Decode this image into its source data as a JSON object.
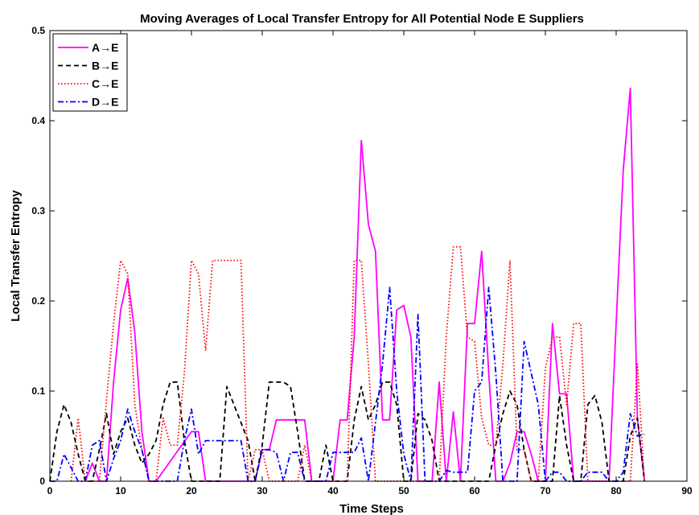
{
  "chart_data": {
    "type": "line",
    "title": "Moving Averages of Local Transfer Entropy for All Potential Node E Suppliers",
    "xlabel": "Time Steps",
    "ylabel": "Local Transfer Entropy",
    "xlim": [
      0,
      90
    ],
    "ylim": [
      0,
      0.5
    ],
    "xticks": [
      "0",
      "10",
      "20",
      "30",
      "40",
      "50",
      "60",
      "70",
      "80",
      "90"
    ],
    "yticks": [
      "0",
      "0.1",
      "0.2",
      "0.3",
      "0.4",
      "0.5"
    ],
    "grid": false,
    "legend_position": "top-left",
    "series": [
      {
        "name": "A→E",
        "color": "#ff00ff",
        "dash": "solid",
        "x": [
          5,
          6,
          7,
          8,
          9,
          10,
          11,
          12,
          13,
          14,
          15,
          20,
          21,
          22,
          23,
          29,
          30,
          31,
          32,
          33,
          34,
          35,
          36,
          37,
          40,
          41,
          42,
          43,
          44,
          45,
          46,
          47,
          48,
          49,
          50,
          51,
          52,
          53,
          54,
          55,
          56,
          57,
          58,
          59,
          60,
          61,
          62,
          63,
          64,
          65,
          66,
          67,
          68,
          69,
          70,
          71,
          72,
          73,
          74,
          75,
          76,
          77,
          78,
          79,
          80,
          81,
          82,
          83,
          84
        ],
        "values": [
          0,
          0.02,
          0,
          0,
          0.11,
          0.19,
          0.225,
          0.165,
          0.055,
          0,
          0,
          0.055,
          0.055,
          0,
          0,
          0,
          0.035,
          0.035,
          0.068,
          0.068,
          0.068,
          0.068,
          0.068,
          0,
          0,
          0.068,
          0.068,
          0.16,
          0.378,
          0.285,
          0.255,
          0.068,
          0.068,
          0.19,
          0.195,
          0.16,
          0,
          0,
          0,
          0.11,
          0,
          0.077,
          0,
          0.175,
          0.175,
          0.255,
          0.12,
          0,
          0,
          0.02,
          0.055,
          0.055,
          0.03,
          0,
          0,
          0.175,
          0.097,
          0.097,
          0,
          0,
          0,
          0,
          0,
          0,
          0.175,
          0.345,
          0.436,
          0.07,
          0
        ]
      },
      {
        "name": "B→E",
        "color": "#000000",
        "dash": "dashed",
        "x": [
          0,
          1,
          2,
          3,
          4,
          5,
          6,
          7,
          8,
          9,
          10,
          11,
          12,
          13,
          14,
          15,
          16,
          17,
          18,
          19,
          20,
          21,
          22,
          23,
          24,
          25,
          26,
          27,
          28,
          29,
          30,
          31,
          32,
          33,
          34,
          35,
          36,
          37,
          38,
          39,
          40,
          41,
          42,
          43,
          44,
          45,
          46,
          47,
          48,
          49,
          50,
          51,
          52,
          53,
          54,
          55,
          56,
          57,
          58,
          59,
          60,
          61,
          62,
          63,
          64,
          65,
          66,
          67,
          68,
          69,
          70,
          71,
          72,
          73,
          74,
          75,
          76,
          77,
          78,
          79,
          80,
          81,
          82,
          83,
          84
        ],
        "values": [
          0,
          0.055,
          0.085,
          0.065,
          0.03,
          0,
          0,
          0.035,
          0.075,
          0.03,
          0.055,
          0.07,
          0.04,
          0.02,
          0.03,
          0.045,
          0.085,
          0.11,
          0.11,
          0.045,
          0,
          0,
          0,
          0,
          0,
          0.105,
          0.085,
          0.065,
          0.045,
          0,
          0.04,
          0.11,
          0.11,
          0.11,
          0.105,
          0.055,
          0,
          0,
          0,
          0.04,
          0,
          0,
          0,
          0.068,
          0.105,
          0.068,
          0.085,
          0.11,
          0.11,
          0.085,
          0,
          0,
          0.075,
          0.068,
          0.045,
          0,
          0,
          0,
          0,
          0,
          0,
          0,
          0,
          0.04,
          0.075,
          0.1,
          0.085,
          0.035,
          0,
          0,
          0,
          0,
          0.095,
          0.04,
          0,
          0,
          0.085,
          0.095,
          0.065,
          0,
          0,
          0,
          0.05,
          0.07,
          0
        ]
      },
      {
        "name": "C→E",
        "color": "#ff0000",
        "dash": "dotted",
        "x": [
          3,
          4,
          5,
          6,
          7,
          8,
          9,
          10,
          11,
          12,
          13,
          14,
          15,
          16,
          17,
          18,
          19,
          20,
          21,
          22,
          23,
          24,
          25,
          26,
          27,
          28,
          29,
          30,
          31,
          32,
          33,
          34,
          35,
          36,
          37,
          38,
          39,
          40,
          41,
          42,
          43,
          44,
          45,
          46,
          47,
          48,
          49,
          50,
          51,
          52,
          53,
          54,
          55,
          56,
          57,
          58,
          59,
          60,
          61,
          62,
          63,
          64,
          65,
          66,
          67,
          68,
          69,
          70,
          71,
          72,
          73,
          74,
          75,
          76,
          77,
          78,
          79,
          80,
          81,
          82,
          83,
          84
        ],
        "values": [
          0,
          0.07,
          0,
          0,
          0,
          0.09,
          0.175,
          0.245,
          0.23,
          0.085,
          0.035,
          0,
          0,
          0.07,
          0.04,
          0.04,
          0.12,
          0.245,
          0.23,
          0.145,
          0.245,
          0.245,
          0.245,
          0.245,
          0.245,
          0,
          0.035,
          0.035,
          0,
          0,
          0,
          0,
          0,
          0.04,
          0,
          0,
          0,
          0,
          0,
          0,
          0.245,
          0.245,
          0.13,
          0,
          0,
          0,
          0,
          0,
          0,
          0,
          0,
          0,
          0,
          0.16,
          0.26,
          0.26,
          0.16,
          0.155,
          0.07,
          0.04,
          0.04,
          0.13,
          0.245,
          0.035,
          0.035,
          0,
          0,
          0.125,
          0.16,
          0.16,
          0.085,
          0.175,
          0.175,
          0,
          0,
          0,
          0,
          0,
          0,
          0,
          0.13,
          0
        ]
      },
      {
        "name": "D→E",
        "color": "#0000ff",
        "dash": "dashdot",
        "x": [
          0,
          1,
          2,
          3,
          4,
          5,
          6,
          7,
          8,
          9,
          10,
          11,
          12,
          13,
          14,
          15,
          16,
          17,
          18,
          19,
          20,
          21,
          22,
          23,
          24,
          25,
          26,
          27,
          28,
          29,
          30,
          31,
          32,
          33,
          34,
          35,
          36,
          37,
          38,
          39,
          40,
          41,
          42,
          43,
          44,
          45,
          46,
          47,
          48,
          49,
          50,
          51,
          52,
          53,
          54,
          55,
          56,
          57,
          58,
          59,
          60,
          61,
          62,
          63,
          64,
          65,
          66,
          67,
          68,
          69,
          70,
          71,
          72,
          73,
          74,
          75,
          76,
          77,
          78,
          79,
          80,
          81,
          82,
          83,
          84
        ],
        "values": [
          0,
          0,
          0.03,
          0.015,
          0,
          0,
          0.04,
          0.045,
          0,
          0.025,
          0.045,
          0.08,
          0.055,
          0.035,
          0,
          0,
          0,
          0,
          0,
          0.045,
          0.08,
          0.03,
          0.045,
          0.045,
          0.045,
          0.045,
          0.045,
          0.045,
          0,
          0,
          0.035,
          0.035,
          0.032,
          0,
          0.032,
          0.032,
          0,
          0,
          0,
          0,
          0.032,
          0.032,
          0.032,
          0.032,
          0.048,
          0,
          0.065,
          0.13,
          0.215,
          0.1,
          0.03,
          0,
          0.185,
          0,
          0,
          0,
          0.012,
          0.01,
          0.01,
          0.01,
          0.1,
          0.11,
          0.215,
          0.12,
          0,
          0,
          0,
          0.155,
          0.12,
          0.085,
          0,
          0.01,
          0.01,
          0,
          0,
          0,
          0.01,
          0.01,
          0.01,
          0,
          0,
          0.01,
          0.075,
          0.05,
          0.052
        ]
      }
    ]
  }
}
